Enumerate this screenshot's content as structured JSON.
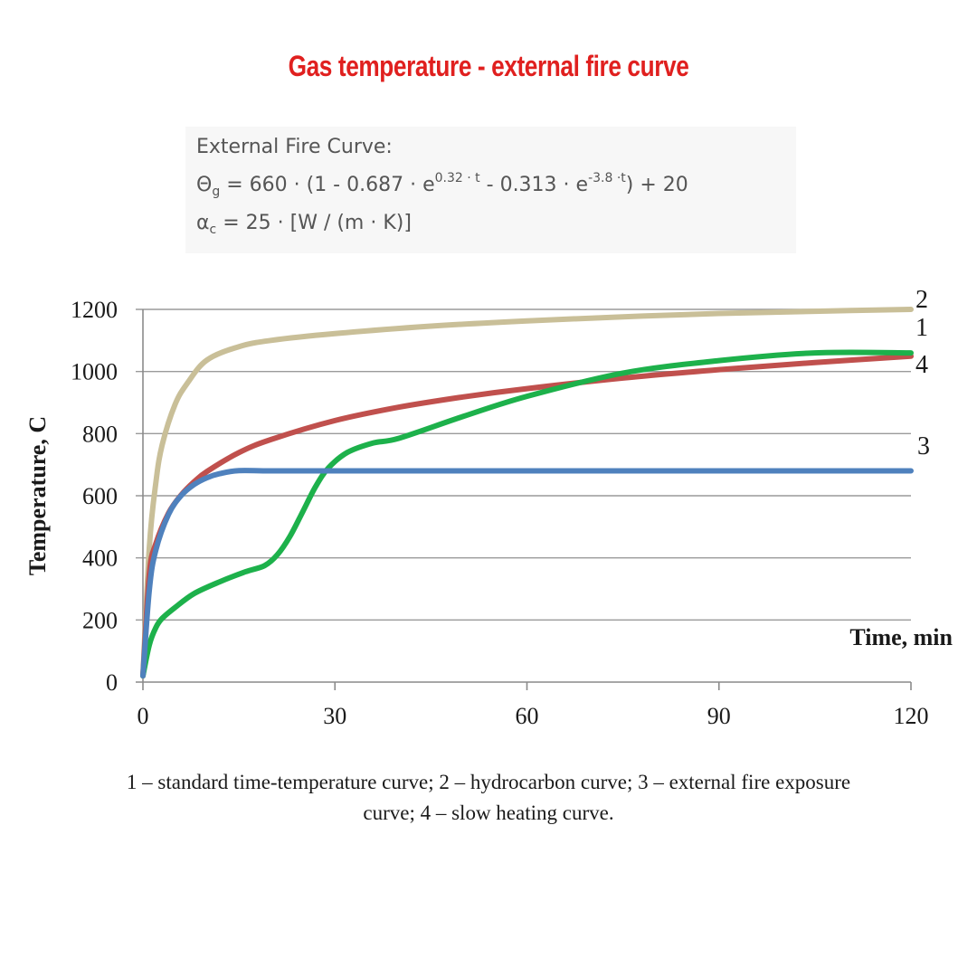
{
  "page": {
    "title": "Gas temperature - external fire curve",
    "title_color": "#e0201f"
  },
  "formula": {
    "heading": "External Fire Curve:",
    "theta_symbol": "Θ",
    "theta_sub": "g",
    "eq_part1": " = 660 · (1 - 0.687 · e",
    "eq_exp1": "0.32 · t",
    "eq_part2": " - 0.313 · e",
    "eq_exp2": "-3.8 ·t",
    "eq_part3": ") + 20",
    "alpha_symbol": "α",
    "alpha_sub": "c",
    "alpha_rest": " = 25 · [W / (m · K)]"
  },
  "chart_data": {
    "type": "line",
    "title": "",
    "xlabel": "Time, min",
    "ylabel": "Temperature, C",
    "xlim": [
      0,
      120
    ],
    "ylim": [
      0,
      1200
    ],
    "xticks": [
      "0",
      "30",
      "60",
      "90",
      "120"
    ],
    "yticks": [
      "0",
      "200",
      "400",
      "600",
      "800",
      "1000",
      "1200"
    ],
    "grid": "horizontal",
    "series": [
      {
        "name": "1",
        "label": "standard time-temperature curve",
        "color": "#c0504d",
        "x": [
          0,
          1,
          2,
          4,
          6,
          8,
          10,
          15,
          20,
          30,
          40,
          50,
          60,
          75,
          90,
          105,
          120
        ],
        "y": [
          20,
          349,
          445,
          544,
          603,
          645,
          678,
          739,
          781,
          842,
          885,
          918,
          945,
          979,
          1006,
          1029,
          1049
        ]
      },
      {
        "name": "2",
        "label": "hydrocarbon curve",
        "color": "#c9bf98",
        "x": [
          0,
          1,
          2,
          3,
          5,
          7,
          10,
          15,
          20,
          30,
          45,
          60,
          75,
          90,
          105,
          120
        ],
        "y": [
          20,
          435,
          640,
          763,
          893,
          964,
          1037,
          1080,
          1100,
          1122,
          1146,
          1163,
          1176,
          1187,
          1194,
          1200
        ]
      },
      {
        "name": "3",
        "label": "external fire exposure curve",
        "color": "#4f81bd",
        "x": [
          0,
          1,
          2,
          4,
          6,
          8,
          10,
          12,
          15,
          20,
          30,
          60,
          90,
          120
        ],
        "y": [
          20,
          297,
          424,
          540,
          601,
          636,
          658,
          671,
          681,
          680,
          680,
          680,
          680,
          680
        ]
      },
      {
        "name": "4",
        "label": "slow heating curve",
        "color": "#1db14b",
        "x": [
          0,
          1,
          2,
          3,
          5,
          8,
          12,
          16,
          19,
          21,
          23,
          25,
          27,
          29,
          32,
          36,
          40,
          50,
          60,
          75,
          90,
          105,
          120
        ],
        "y": [
          20,
          120,
          175,
          205,
          240,
          285,
          323,
          355,
          375,
          410,
          470,
          550,
          630,
          690,
          740,
          770,
          785,
          855,
          920,
          995,
          1035,
          1060,
          1060
        ]
      }
    ]
  },
  "caption": {
    "line1": "1 – standard time-temperature curve; 2 – hydrocarbon curve; 3 – external fire exposure",
    "line2": "curve; 4 – slow heating curve."
  }
}
